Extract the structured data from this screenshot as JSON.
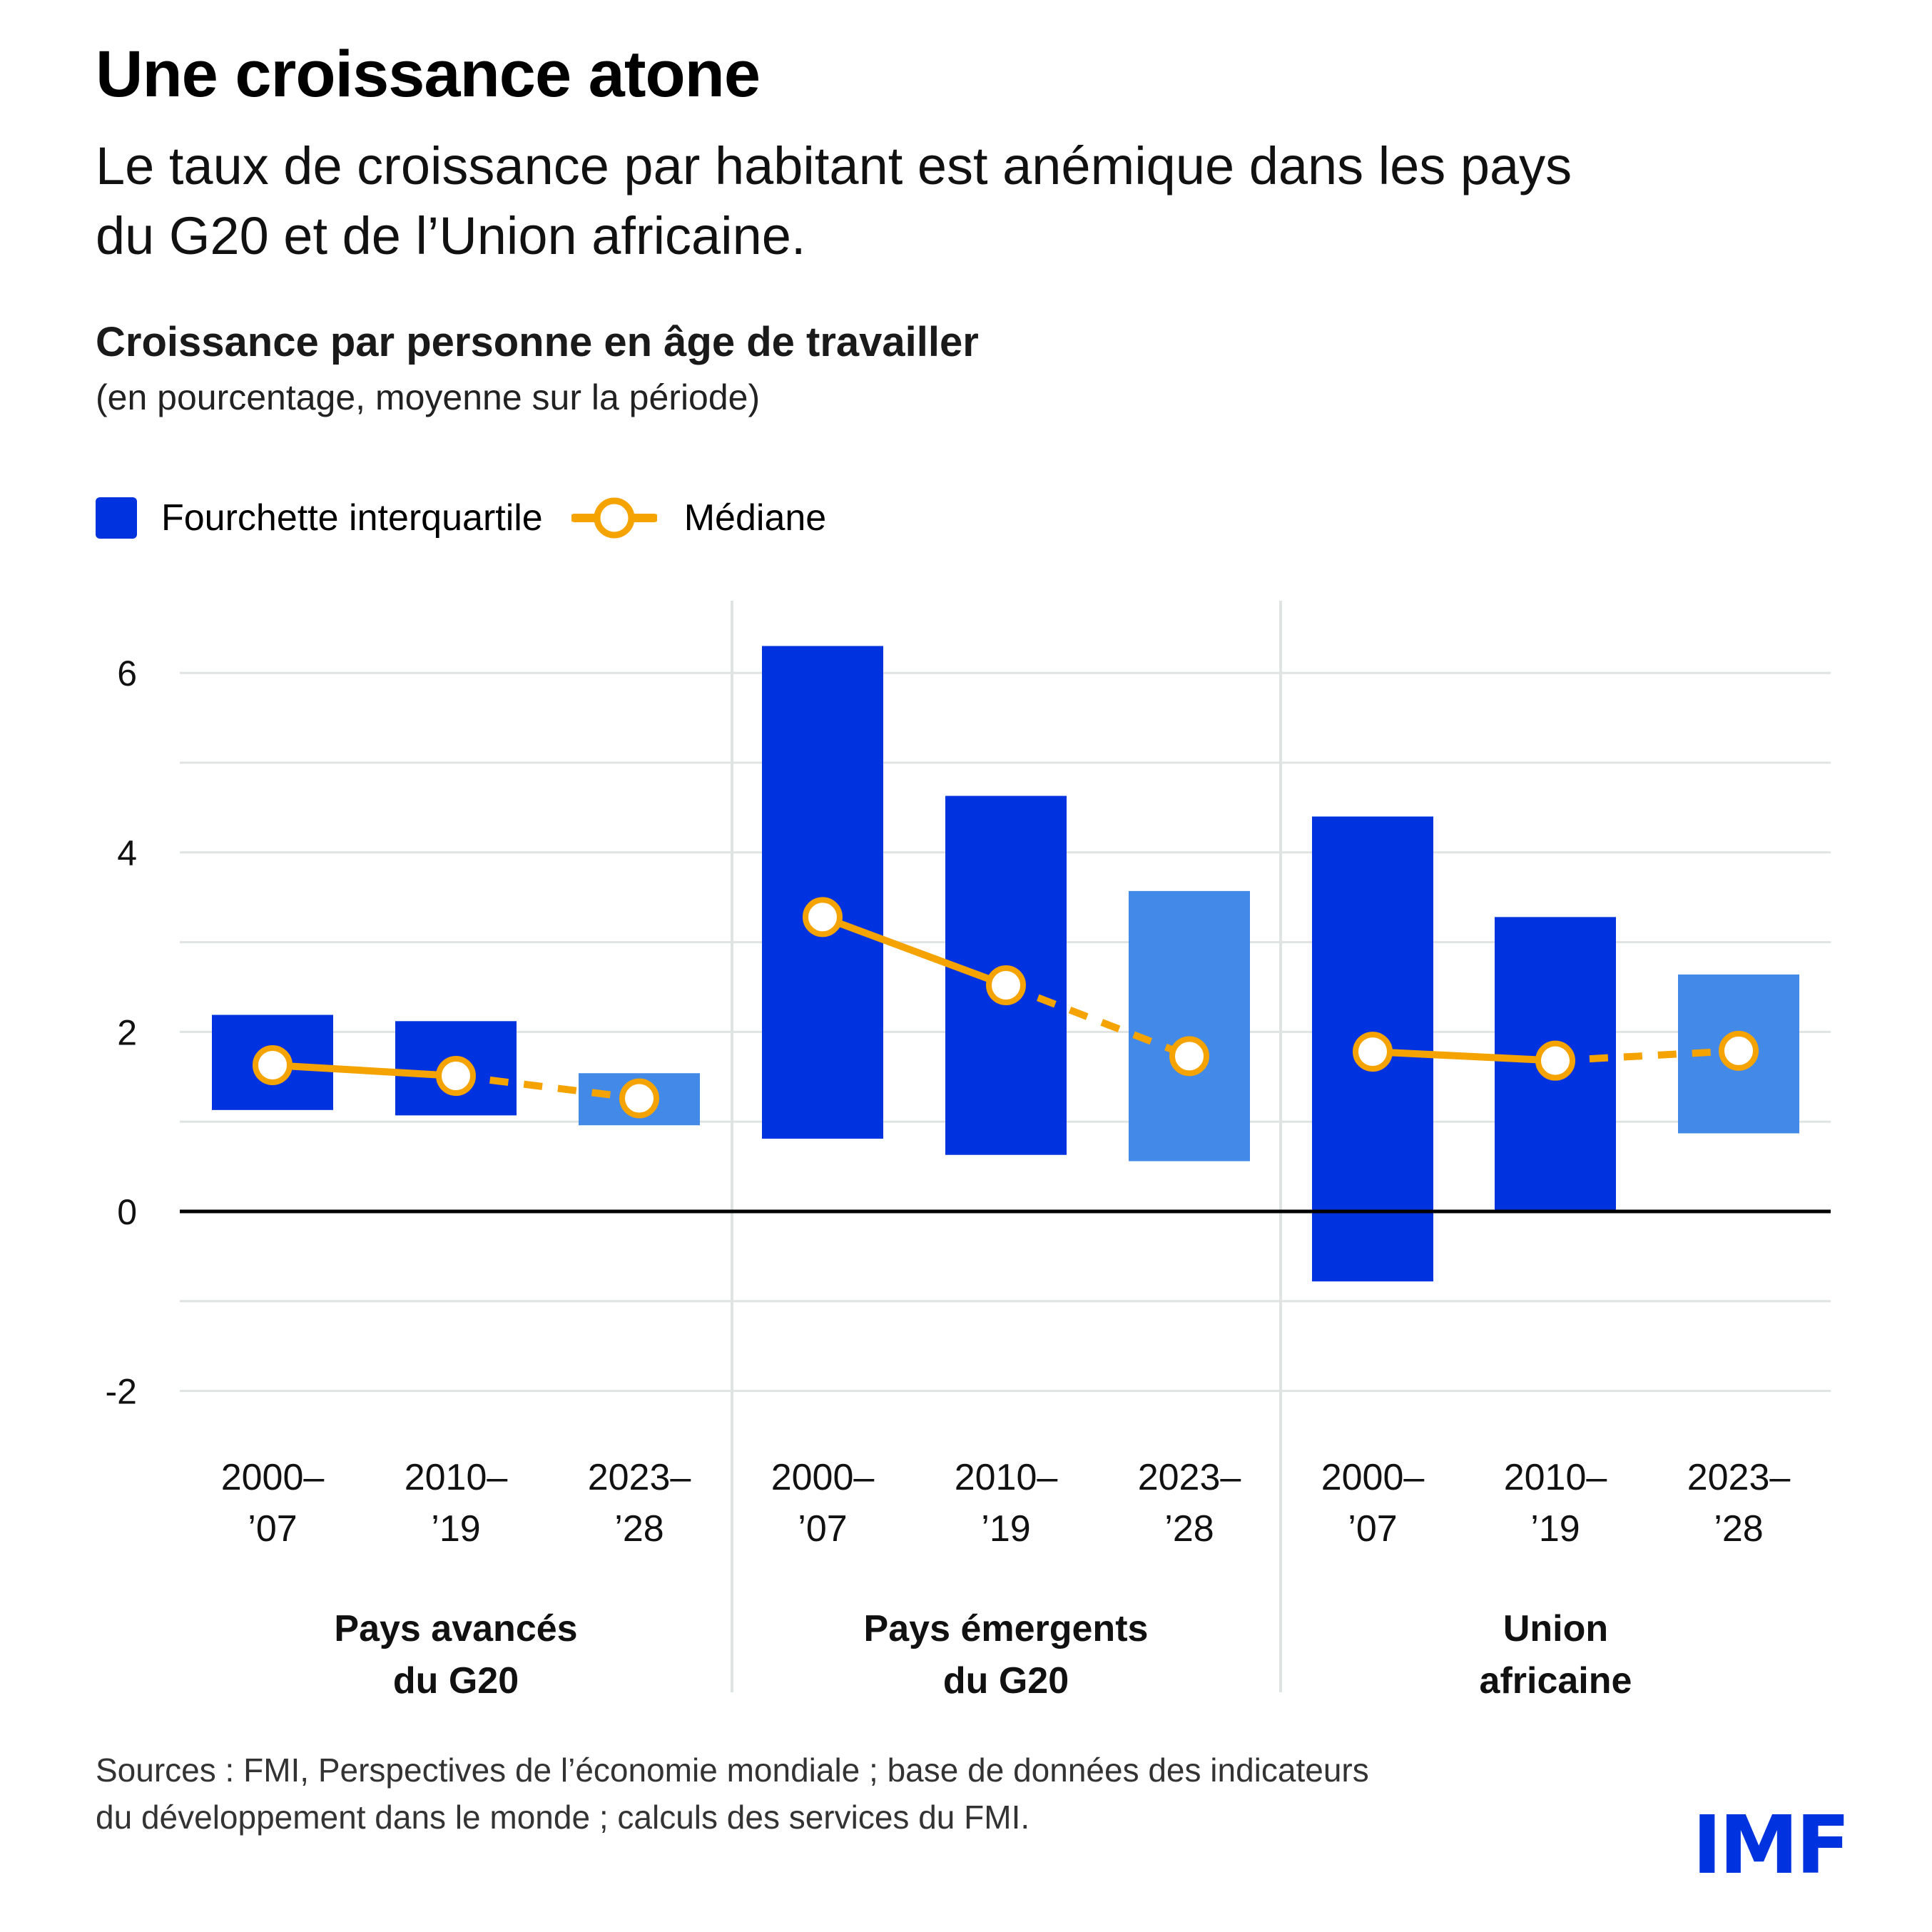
{
  "header": {
    "title": "Une croissance atone",
    "subtitle_line1": "Le taux de croissance par habitant est anémique dans les pays",
    "subtitle_line2": "du G20 et de l’Union africaine."
  },
  "colors": {
    "iqr_historical": "#0033e0",
    "iqr_projection": "#4289e8",
    "median": "#f5a300",
    "gridline": "#dfe4e3",
    "zero_line": "#000000",
    "logo": "#0033e0"
  },
  "legend": {
    "iqr_label": "Fourchette interquartile",
    "median_label": "Médiane"
  },
  "chart_data": {
    "type": "bar",
    "title": "Croissance par personne en âge de travailler",
    "subtitle": "(en pourcentage, moyenne sur la période)",
    "xlabel": "",
    "ylabel": "",
    "ylim": [
      -2.5,
      6.8
    ],
    "yticks": [
      6,
      4,
      2,
      0,
      -2
    ],
    "ytick_labels": [
      "6",
      "4",
      "2",
      "0",
      "-2"
    ],
    "minor_gridlines": [
      5,
      3,
      1,
      -1
    ],
    "grid": true,
    "legend_position": "top-left",
    "groups": [
      {
        "label_line1": "Pays avancés",
        "label_line2": "du G20",
        "periods": [
          {
            "label_line1": "2000–",
            "label_line2": "’07",
            "q1": 1.13,
            "q3": 2.19,
            "median": 1.63,
            "projection": false
          },
          {
            "label_line1": "2010–",
            "label_line2": "’19",
            "q1": 1.07,
            "q3": 2.12,
            "median": 1.51,
            "projection": false
          },
          {
            "label_line1": "2023–",
            "label_line2": "’28",
            "q1": 0.96,
            "q3": 1.54,
            "median": 1.26,
            "projection": true
          }
        ]
      },
      {
        "label_line1": "Pays émergents",
        "label_line2": "du G20",
        "periods": [
          {
            "label_line1": "2000–",
            "label_line2": "’07",
            "q1": 0.81,
            "q3": 6.3,
            "median": 3.28,
            "projection": false
          },
          {
            "label_line1": "2010–",
            "label_line2": "’19",
            "q1": 0.63,
            "q3": 4.63,
            "median": 2.52,
            "projection": false
          },
          {
            "label_line1": "2023–",
            "label_line2": "’28",
            "q1": 0.56,
            "q3": 3.57,
            "median": 1.73,
            "projection": true
          }
        ]
      },
      {
        "label_line1": "Union",
        "label_line2": "africaine",
        "periods": [
          {
            "label_line1": "2000–",
            "label_line2": "’07",
            "q1": -0.78,
            "q3": 4.4,
            "median": 1.78,
            "projection": false
          },
          {
            "label_line1": "2010–",
            "label_line2": "’19",
            "q1": 0.0,
            "q3": 3.28,
            "median": 1.68,
            "projection": false
          },
          {
            "label_line1": "2023–",
            "label_line2": "’28",
            "q1": 0.87,
            "q3": 2.64,
            "median": 1.79,
            "projection": true
          }
        ]
      }
    ]
  },
  "footer": {
    "sources_line1": "Sources : FMI, Perspectives de l’économie mondiale ; base de données des indicateurs",
    "sources_line2": "du développement dans le monde ; calculs des services du FMI.",
    "logo_text": "IMF"
  }
}
